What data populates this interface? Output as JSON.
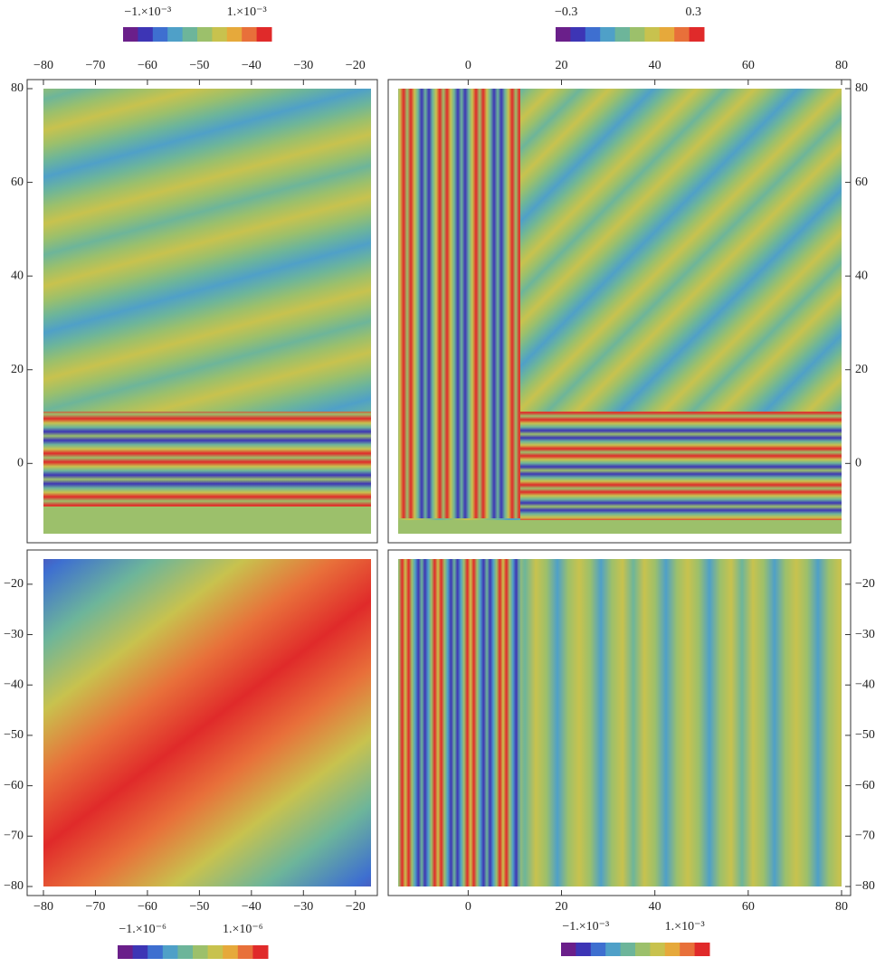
{
  "chart_data": [
    {
      "type": "density",
      "xlim": [
        -80,
        -17
      ],
      "ylim": [
        -15,
        80
      ],
      "x_axis_side": "top",
      "y_axis_side": "left",
      "xticks": [
        {
          "value": -80,
          "label": "−80"
        },
        {
          "value": -70,
          "label": "−70"
        },
        {
          "value": -60,
          "label": "−60"
        },
        {
          "value": -50,
          "label": "−50"
        },
        {
          "value": -40,
          "label": "−40"
        },
        {
          "value": -30,
          "label": "−30"
        },
        {
          "value": -20,
          "label": "−20"
        }
      ],
      "yticks": [
        0,
        20,
        40,
        60,
        80
      ],
      "colorbar": {
        "lim": [
          -0.0015,
          0.0015
        ],
        "ticks": [
          {
            "value": -0.001,
            "label": "−1.×10⁻³"
          },
          {
            "value": 0.001,
            "label": "1.×10⁻³"
          }
        ],
        "colors": [
          "#6a1f8a",
          "#3d35b5",
          "#3e6fd0",
          "#4fa0c8",
          "#6db59a",
          "#9cc06b",
          "#c8c24e",
          "#e6a93b",
          "#e8703a",
          "#e02a2a"
        ]
      }
    },
    {
      "type": "density",
      "xlim": [
        -15,
        80
      ],
      "ylim": [
        -15,
        80
      ],
      "x_axis_side": "top",
      "y_axis_side": "right",
      "xticks": [
        0,
        20,
        40,
        60,
        80
      ],
      "yticks": [
        0,
        20,
        40,
        60,
        80
      ],
      "colorbar": {
        "lim": [
          -0.35,
          0.35
        ],
        "ticks": [
          {
            "value": -0.3,
            "label": "−0.3"
          },
          0.3
        ],
        "colors": [
          "#6a1f8a",
          "#3d35b5",
          "#3e6fd0",
          "#4fa0c8",
          "#6db59a",
          "#9cc06b",
          "#c8c24e",
          "#e6a93b",
          "#e8703a",
          "#e02a2a"
        ]
      }
    },
    {
      "type": "density",
      "xlim": [
        -80,
        -17
      ],
      "ylim": [
        -80,
        -15
      ],
      "x_axis_side": "bottom",
      "y_axis_side": "left",
      "xticks": [
        {
          "value": -80,
          "label": "−80"
        },
        {
          "value": -70,
          "label": "−70"
        },
        {
          "value": -60,
          "label": "−60"
        },
        {
          "value": -50,
          "label": "−50"
        },
        {
          "value": -40,
          "label": "−40"
        },
        {
          "value": -30,
          "label": "−30"
        },
        {
          "value": -20,
          "label": "−20"
        }
      ],
      "yticks": [
        {
          "value": -20,
          "label": "−20"
        },
        {
          "value": -30,
          "label": "−30"
        },
        {
          "value": -40,
          "label": "−40"
        },
        {
          "value": -50,
          "label": "−50"
        },
        {
          "value": -60,
          "label": "−60"
        },
        {
          "value": -70,
          "label": "−70"
        },
        {
          "value": -80,
          "label": "−80"
        }
      ],
      "colorbar": {
        "lim": [
          -1.5e-06,
          1.5e-06
        ],
        "ticks": [
          {
            "value": -1e-06,
            "label": "−1.×10⁻⁶"
          },
          {
            "value": 1e-06,
            "label": "1.×10⁻⁶"
          }
        ],
        "colors": [
          "#6a1f8a",
          "#3d35b5",
          "#3e6fd0",
          "#4fa0c8",
          "#6db59a",
          "#9cc06b",
          "#c8c24e",
          "#e6a93b",
          "#e8703a",
          "#e02a2a"
        ]
      }
    },
    {
      "type": "density",
      "xlim": [
        -15,
        80
      ],
      "ylim": [
        -80,
        -15
      ],
      "x_axis_side": "bottom",
      "y_axis_side": "right",
      "xticks": [
        0,
        20,
        40,
        60,
        80
      ],
      "yticks": [
        {
          "value": -20,
          "label": "−20"
        },
        {
          "value": -30,
          "label": "−30"
        },
        {
          "value": -40,
          "label": "−40"
        },
        {
          "value": -50,
          "label": "−50"
        },
        {
          "value": -60,
          "label": "−60"
        },
        {
          "value": -70,
          "label": "−70"
        },
        {
          "value": -80,
          "label": "−80"
        }
      ],
      "colorbar": {
        "lim": [
          -0.0015,
          0.0015
        ],
        "ticks": [
          {
            "value": -0.001,
            "label": "−1.×10⁻³"
          },
          {
            "value": 0.001,
            "label": "1.×10⁻³"
          }
        ],
        "colors": [
          "#6a1f8a",
          "#3d35b5",
          "#3e6fd0",
          "#4fa0c8",
          "#6db59a",
          "#9cc06b",
          "#c8c24e",
          "#e6a93b",
          "#e8703a",
          "#e02a2a"
        ]
      }
    }
  ]
}
